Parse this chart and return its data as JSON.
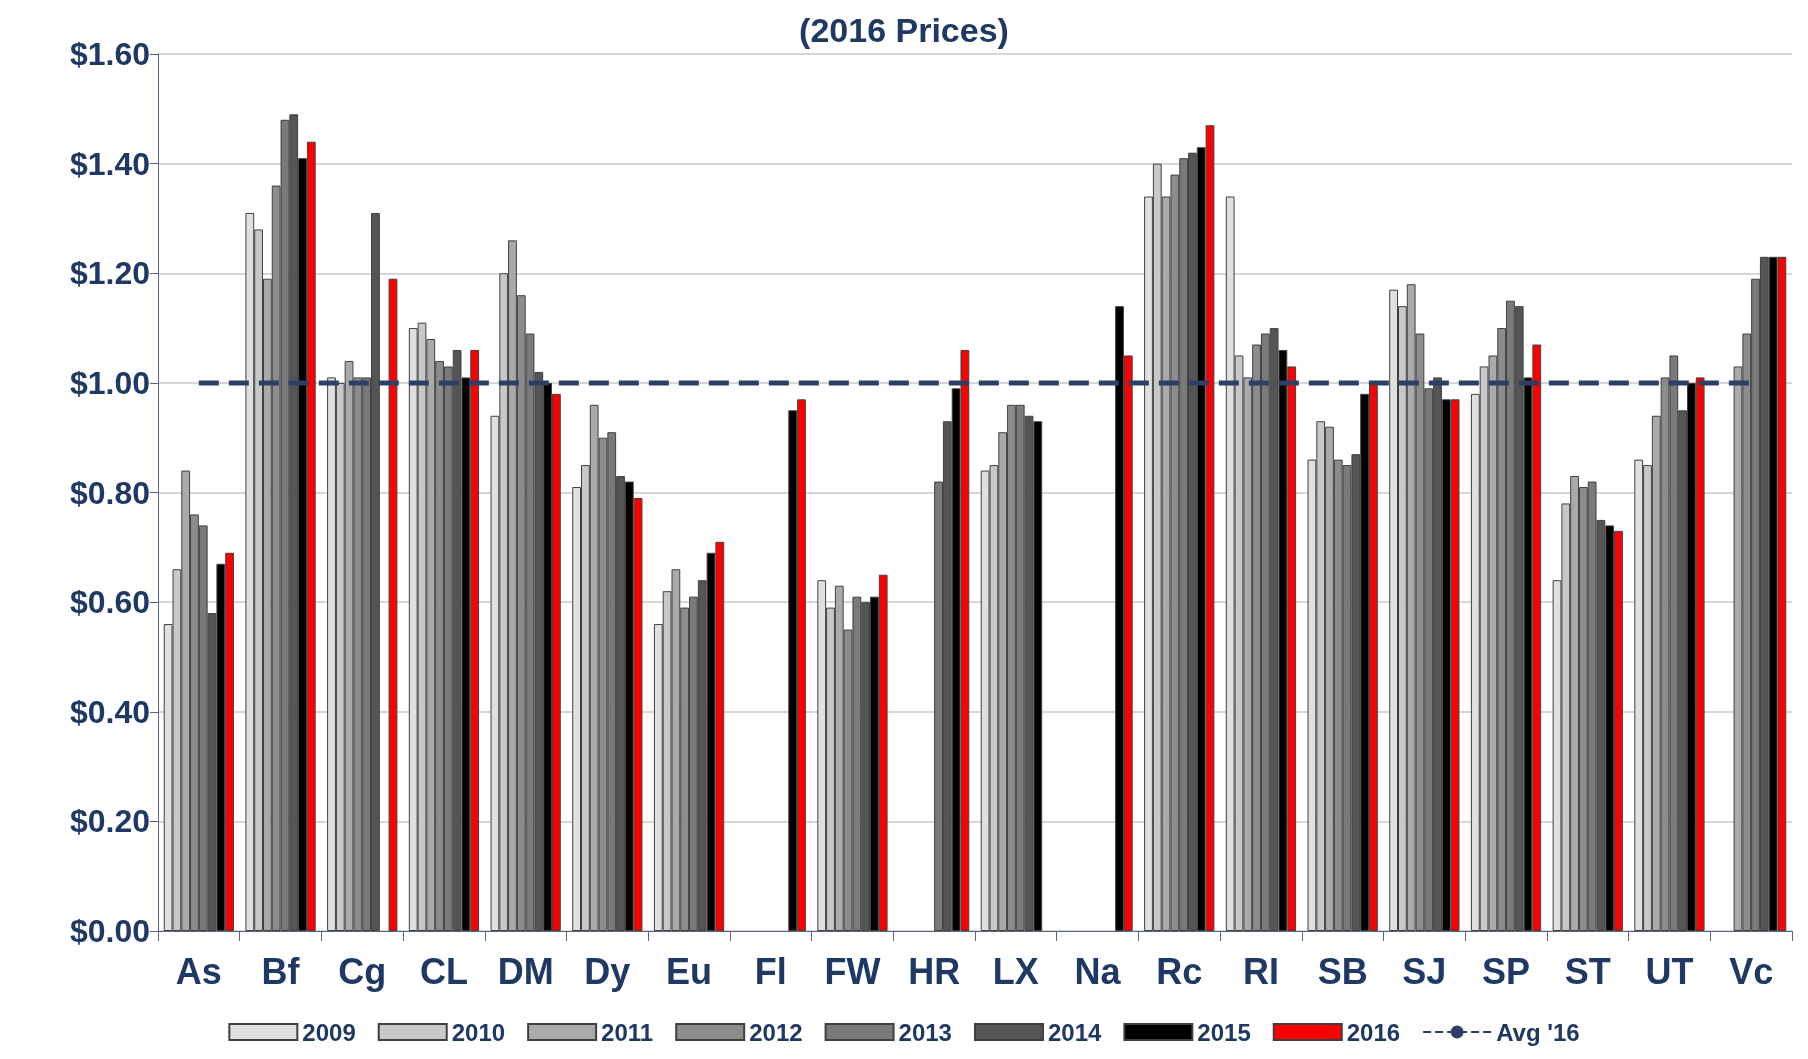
{
  "chart_data": {
    "type": "bar",
    "title": "(2016 Prices)",
    "categories": [
      "As",
      "Bf",
      "Cg",
      "CL",
      "DM",
      "Dy",
      "Eu",
      "Fl",
      "FW",
      "HR",
      "LX",
      "Na",
      "Rc",
      "RI",
      "SB",
      "SJ",
      "SP",
      "ST",
      "UT",
      "Vc"
    ],
    "series": [
      {
        "name": "2009",
        "color": "#e0e0e0",
        "values": [
          0.56,
          1.31,
          1.01,
          1.1,
          0.94,
          0.81,
          0.56,
          null,
          0.64,
          null,
          0.84,
          null,
          1.34,
          1.34,
          0.86,
          1.17,
          0.98,
          0.64,
          0.86,
          null
        ]
      },
      {
        "name": "2010",
        "color": "#c8c8c8",
        "values": [
          0.66,
          1.28,
          1.0,
          1.11,
          1.2,
          0.85,
          0.62,
          null,
          0.59,
          null,
          0.85,
          null,
          1.4,
          1.05,
          0.93,
          1.14,
          1.03,
          0.78,
          0.85,
          null
        ]
      },
      {
        "name": "2011",
        "color": "#aaaaaa",
        "values": [
          0.84,
          1.19,
          1.04,
          1.08,
          1.26,
          0.96,
          0.66,
          null,
          0.63,
          null,
          0.91,
          null,
          1.34,
          1.01,
          0.92,
          1.18,
          1.05,
          0.83,
          0.94,
          1.03
        ]
      },
      {
        "name": "2012",
        "color": "#8c8c8c",
        "values": [
          0.76,
          1.36,
          1.01,
          1.04,
          1.16,
          0.9,
          0.59,
          null,
          0.55,
          null,
          0.96,
          null,
          1.38,
          1.07,
          0.86,
          1.09,
          1.1,
          0.81,
          1.01,
          1.09
        ]
      },
      {
        "name": "2013",
        "color": "#7a7a7a",
        "values": [
          0.74,
          1.48,
          1.01,
          1.03,
          1.09,
          0.91,
          0.61,
          null,
          0.61,
          0.82,
          0.96,
          null,
          1.41,
          1.09,
          0.85,
          0.99,
          1.15,
          0.82,
          1.05,
          1.19
        ]
      },
      {
        "name": "2014",
        "color": "#555555",
        "values": [
          0.58,
          1.49,
          1.31,
          1.06,
          1.02,
          0.83,
          0.64,
          null,
          0.6,
          0.93,
          0.94,
          null,
          1.42,
          1.1,
          0.87,
          1.01,
          1.14,
          0.75,
          0.95,
          1.23
        ]
      },
      {
        "name": "2015",
        "color": "#000000",
        "values": [
          0.67,
          1.41,
          null,
          1.01,
          1.0,
          0.82,
          0.69,
          0.95,
          0.61,
          0.99,
          0.93,
          1.14,
          1.43,
          1.06,
          0.98,
          0.97,
          1.01,
          0.74,
          1.0,
          1.23
        ]
      },
      {
        "name": "2016",
        "color": "#ff0000",
        "values": [
          0.69,
          1.44,
          1.19,
          1.06,
          0.98,
          0.79,
          0.71,
          0.97,
          0.65,
          1.06,
          null,
          1.05,
          1.47,
          1.03,
          1.0,
          0.97,
          1.07,
          0.73,
          1.01,
          1.23
        ]
      },
      {
        "name": "Avg '16",
        "type": "line",
        "color": "#2e3f66",
        "line_style": "dashed",
        "marker": "none",
        "values": [
          1.0,
          1.0,
          1.0,
          1.0,
          1.0,
          1.0,
          1.0,
          1.0,
          1.0,
          1.0,
          1.0,
          1.0,
          1.0,
          1.0,
          1.0,
          1.0,
          1.0,
          1.0,
          1.0,
          1.0
        ]
      }
    ],
    "ylim": [
      0,
      1.6
    ],
    "yticks": [
      {
        "value": 0,
        "label": "$0.00"
      },
      {
        "value": 0.2,
        "label": "$0.20"
      },
      {
        "value": 0.4,
        "label": "$0.40"
      },
      {
        "value": 0.6,
        "label": "$0.60"
      },
      {
        "value": 0.8,
        "label": "$0.80"
      },
      {
        "value": 1.0,
        "label": "$1.00"
      },
      {
        "value": 1.2,
        "label": "$1.20"
      },
      {
        "value": 1.4,
        "label": "$1.40"
      },
      {
        "value": 1.6,
        "label": "$1.60"
      }
    ],
    "grid": "y",
    "legend": "bottom"
  }
}
